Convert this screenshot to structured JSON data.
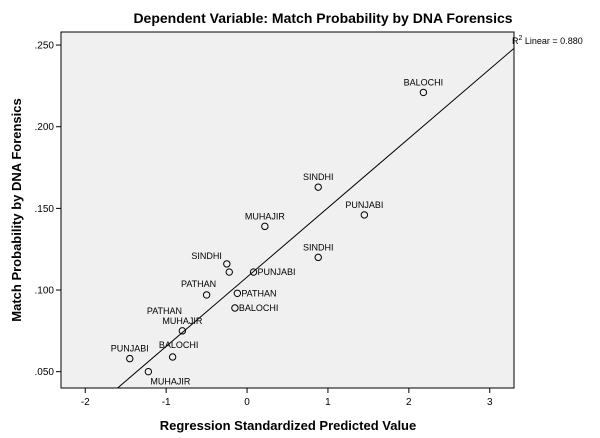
{
  "chart_data": {
    "type": "scatter",
    "title": "Dependent Variable: Match Probability by DNA Forensics",
    "xlabel": "Regression Standardized Predicted Value",
    "ylabel": "Match Probability by DNA Forensics",
    "xlim": [
      -2.3,
      3.3
    ],
    "ylim": [
      0.04,
      0.258
    ],
    "xticks": [
      -2,
      -1,
      0,
      1,
      2,
      3
    ],
    "xtick_labels": [
      "-2",
      "-1",
      "0",
      "1",
      "2",
      "3"
    ],
    "yticks": [
      0.05,
      0.1,
      0.15,
      0.2,
      0.25
    ],
    "ytick_labels": [
      ".050",
      ".100",
      ".150",
      ".200",
      ".250"
    ],
    "plot_background": "#f0f0f0",
    "marker": "open-circle",
    "fit_line": {
      "label_prefix": "R",
      "label_sup": "2",
      "label_rest": " Linear = 0.880",
      "from": [
        -1.6,
        0.04
      ],
      "to": [
        3.3,
        0.248
      ]
    },
    "points": [
      {
        "x": 2.18,
        "y": 0.221,
        "label": "BALOCHI",
        "anchor": "above"
      },
      {
        "x": 0.88,
        "y": 0.163,
        "label": "SINDHI",
        "anchor": "above"
      },
      {
        "x": 1.45,
        "y": 0.146,
        "label": "PUNJABI",
        "anchor": "above"
      },
      {
        "x": 0.22,
        "y": 0.139,
        "label": "MUHAJIR",
        "anchor": "above"
      },
      {
        "x": 0.88,
        "y": 0.12,
        "label": "SINDHI",
        "anchor": "above"
      },
      {
        "x": -0.25,
        "y": 0.116,
        "label": "SINDHI",
        "anchor": "left"
      },
      {
        "x": -0.22,
        "y": 0.111,
        "label": "",
        "anchor": "none"
      },
      {
        "x": 0.08,
        "y": 0.111,
        "label": "PUNJABI",
        "anchor": "right"
      },
      {
        "x": -0.5,
        "y": 0.097,
        "label": "PATHAN",
        "anchor": "above-left"
      },
      {
        "x": -0.12,
        "y": 0.098,
        "label": "PATHAN",
        "anchor": "right"
      },
      {
        "x": -0.15,
        "y": 0.089,
        "label": "BALOCHI",
        "anchor": "right"
      },
      {
        "x": -0.8,
        "y": 0.075,
        "label": "MUHAJIR",
        "anchor": "above"
      },
      {
        "x": -1.45,
        "y": 0.058,
        "label": "PUNJABI",
        "anchor": "above"
      },
      {
        "x": -0.92,
        "y": 0.059,
        "label": "BALOCHI",
        "anchor": "above-right"
      },
      {
        "x": -1.22,
        "y": 0.05,
        "label": "MUHAJIR",
        "anchor": "below-right"
      }
    ],
    "extra_label": {
      "x": -0.65,
      "y": 0.0865,
      "label": "PATHAN"
    }
  }
}
